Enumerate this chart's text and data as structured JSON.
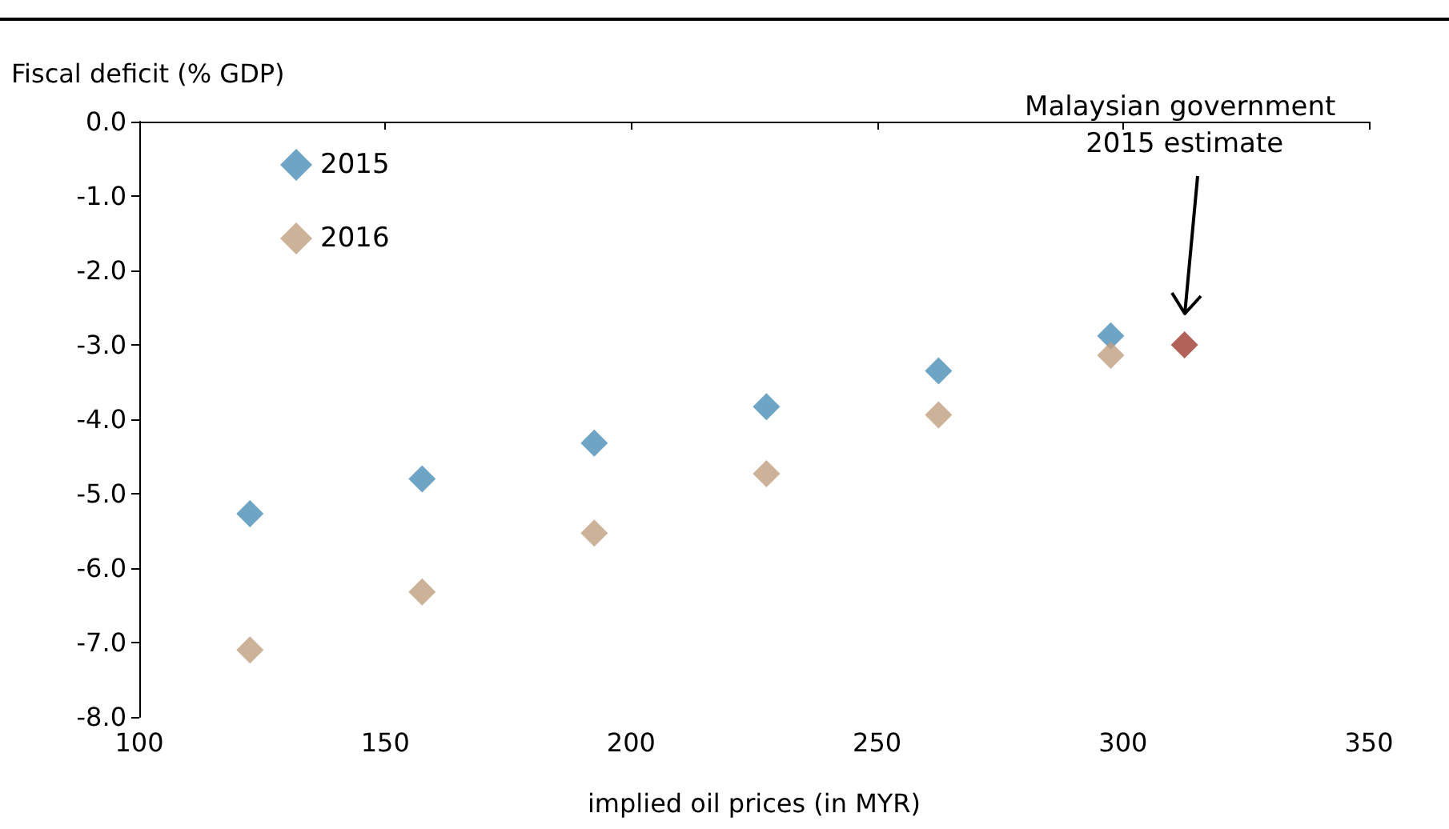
{
  "chart_data": {
    "type": "scatter",
    "xlabel": "implied oil prices (in MYR)",
    "ylabel": "Fiscal deficit (% GDP)",
    "xlim": [
      100,
      350
    ],
    "xticks": [
      100,
      150,
      200,
      250,
      300,
      350
    ],
    "ylim": [
      -8,
      0
    ],
    "yticks": [
      {
        "value": 0,
        "label": "0.0"
      },
      {
        "value": -1,
        "label": "-1.0"
      },
      {
        "value": -2,
        "label": "-2.0"
      },
      {
        "value": -3,
        "label": "-3.0"
      },
      {
        "value": -4,
        "label": "-4.0"
      },
      {
        "value": -5,
        "label": "-5.0"
      },
      {
        "value": -6,
        "label": "-6.0"
      },
      {
        "value": -7,
        "label": "-7.0"
      },
      {
        "value": -8,
        "label": "-8.0"
      }
    ],
    "series": [
      {
        "name": "2015",
        "color": "#4a8fb5",
        "x": [
          122.5,
          157.5,
          192.5,
          227.5,
          262.5,
          297.5
        ],
        "values": [
          -5.27,
          -4.8,
          -4.32,
          -3.83,
          -3.35,
          -2.88
        ]
      },
      {
        "name": "2016",
        "color": "#bf9f80",
        "x": [
          122.5,
          157.5,
          192.5,
          227.5,
          262.5,
          297.5
        ],
        "values": [
          -7.1,
          -6.32,
          -5.53,
          -4.73,
          -3.94,
          -3.14
        ]
      },
      {
        "color": "#9e3b30",
        "x": [
          312.5
        ],
        "values": [
          -3.0
        ]
      }
    ],
    "annotations": [
      "Malaysian government 2015 estimate"
    ],
    "marker": "diamond",
    "grid": false,
    "legend": "top left"
  }
}
